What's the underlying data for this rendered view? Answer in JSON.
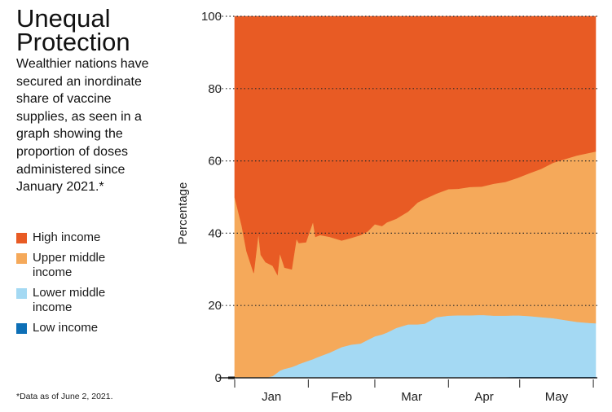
{
  "header": {
    "title_line1": "Unequal",
    "title_line2": "Protection",
    "subtitle": "Wealthier nations have secured an inordinate share of vaccine supplies, as seen in a graph showing the proportion of doses administered since January 2021.*"
  },
  "footnote": "*Data as of June 2, 2021.",
  "legend": [
    {
      "label": "High income",
      "color": "#e85b24"
    },
    {
      "label": "Upper middle income",
      "color": "#f5a95a"
    },
    {
      "label": "Lower middle income",
      "color": "#a4d9f3"
    },
    {
      "label": "Low income",
      "color": "#0d6fb6"
    }
  ],
  "chart_data": {
    "type": "area",
    "stacked": true,
    "percent": true,
    "title": "",
    "xlabel": "",
    "ylabel": "Percentage",
    "ylim": [
      0,
      100
    ],
    "yticks": [
      "0",
      "20",
      "40",
      "60",
      "80",
      "100"
    ],
    "xticks": [
      "Jan",
      "Feb",
      "Mar",
      "Apr",
      "May"
    ],
    "xlim": [
      "2021-01-01",
      "2021-06-02"
    ],
    "grid": "horizontal dotted",
    "x": [
      "2021-01-01",
      "2021-01-04",
      "2021-01-06",
      "2021-01-09",
      "2021-01-11",
      "2021-01-12",
      "2021-01-14",
      "2021-01-17",
      "2021-01-19",
      "2021-01-20",
      "2021-01-22",
      "2021-01-25",
      "2021-01-27",
      "2021-01-28",
      "2021-01-31",
      "2021-02-03",
      "2021-02-04",
      "2021-02-06",
      "2021-02-10",
      "2021-02-15",
      "2021-02-19",
      "2021-02-23",
      "2021-02-26",
      "2021-03-01",
      "2021-03-04",
      "2021-03-06",
      "2021-03-10",
      "2021-03-15",
      "2021-03-19",
      "2021-03-22",
      "2021-03-27",
      "2021-04-01",
      "2021-04-05",
      "2021-04-10",
      "2021-04-15",
      "2021-04-20",
      "2021-04-25",
      "2021-04-30",
      "2021-05-05",
      "2021-05-10",
      "2021-05-15",
      "2021-05-20",
      "2021-05-25",
      "2021-05-30",
      "2021-06-02"
    ],
    "series": [
      {
        "name": "Low income",
        "color": "#0d6fb6",
        "values": [
          0,
          0,
          0,
          0,
          0,
          0,
          0,
          0,
          0,
          0,
          0,
          0,
          0,
          0,
          0,
          0,
          0,
          0,
          0,
          0,
          0,
          0,
          0,
          0,
          0,
          0,
          0,
          0,
          0,
          0,
          0,
          0,
          0.1,
          0.1,
          0.1,
          0.2,
          0.2,
          0.3,
          0.3,
          0.3,
          0.3,
          0.3,
          0.3,
          0.3,
          0.3
        ]
      },
      {
        "name": "Lower middle income",
        "color": "#a4d9f3",
        "values": [
          0,
          0,
          0,
          0,
          0,
          0,
          0,
          0.5,
          1.5,
          2,
          2.5,
          3,
          3.5,
          3.8,
          4.5,
          5.2,
          5.5,
          6,
          7,
          8.5,
          9.2,
          9.5,
          10.5,
          11.5,
          12,
          12.5,
          13.8,
          14.8,
          14.8,
          15,
          16.8,
          17.2,
          17.2,
          17.2,
          17.3,
          17,
          17,
          17,
          16.8,
          16.5,
          16.2,
          15.7,
          15.2,
          14.9,
          14.8
        ]
      },
      {
        "name": "Upper middle income",
        "color": "#f5a95a",
        "values": [
          50,
          42,
          35,
          29,
          40,
          34,
          32,
          30.5,
          27,
          32.5,
          28,
          27,
          35,
          33.5,
          33,
          38,
          33.5,
          33.5,
          32,
          29.5,
          29.5,
          30,
          30,
          31,
          30,
          30.5,
          30.2,
          31.2,
          33.7,
          34.5,
          34.2,
          35,
          35,
          35.5,
          35.5,
          36.5,
          37,
          38,
          39.5,
          41,
          43,
          44.5,
          46,
          47,
          47.5
        ]
      },
      {
        "name": "High income",
        "color": "#e85b24",
        "values": [
          50,
          58,
          65,
          71,
          60,
          66,
          68,
          69,
          71.5,
          65.5,
          69.5,
          70,
          61.5,
          62.7,
          62.5,
          56.8,
          61,
          60.5,
          61,
          62,
          61.3,
          60.5,
          59.5,
          57.5,
          58,
          57,
          56,
          54,
          51.5,
          50.5,
          49,
          47.8,
          47.7,
          47.2,
          47.1,
          46.3,
          45.8,
          44.7,
          43.4,
          42.2,
          40.5,
          39.5,
          38.5,
          37.8,
          37.4
        ]
      }
    ]
  }
}
